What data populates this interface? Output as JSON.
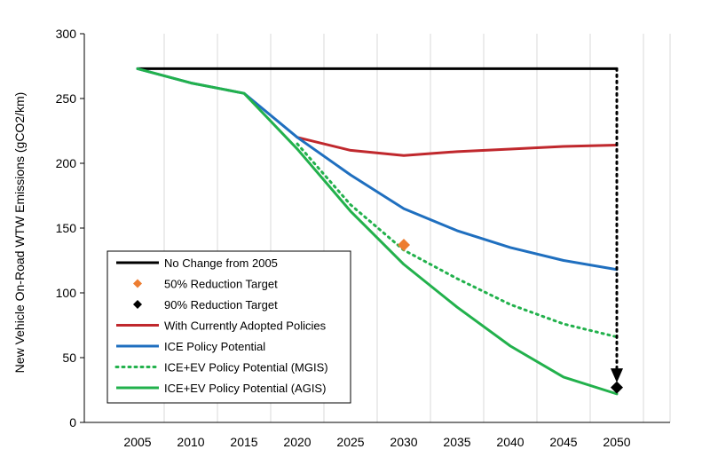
{
  "chart_data": {
    "type": "line",
    "title": "",
    "xlabel": "",
    "ylabel": "New Vehicle On-Road WTW Emissions (gCO2/km)",
    "xlim": [
      2000,
      2055
    ],
    "ylim": [
      0,
      300
    ],
    "x_ticks": [
      2005,
      2010,
      2015,
      2020,
      2025,
      2030,
      2035,
      2040,
      2045,
      2050
    ],
    "y_ticks": [
      0,
      50,
      100,
      150,
      200,
      250,
      300
    ],
    "grid": "vertical",
    "legend_position": "lower-left",
    "series": [
      {
        "name": "No Change from 2005",
        "kind": "line",
        "style": "solid",
        "color": "#000000",
        "x": [
          2005,
          2050
        ],
        "y": [
          273,
          273
        ]
      },
      {
        "name": "50% Reduction Target",
        "kind": "marker",
        "marker": "diamond",
        "color": "#ED7D31",
        "x": [
          2030
        ],
        "y": [
          137
        ]
      },
      {
        "name": "90% Reduction Target",
        "kind": "marker",
        "marker": "diamond",
        "color": "#000000",
        "x": [
          2050
        ],
        "y": [
          27
        ]
      },
      {
        "name": "With Currently Adopted Policies",
        "kind": "line",
        "style": "solid",
        "color": "#C0282D",
        "x": [
          2020,
          2025,
          2030,
          2035,
          2040,
          2045,
          2050
        ],
        "y": [
          220,
          210,
          206,
          209,
          211,
          213,
          214
        ]
      },
      {
        "name": "ICE Policy Potential",
        "kind": "line",
        "style": "solid",
        "color": "#1F6FBF",
        "x": [
          2005,
          2010,
          2015,
          2020,
          2025,
          2030,
          2035,
          2040,
          2045,
          2050
        ],
        "y": [
          273,
          262,
          254,
          220,
          191,
          165,
          148,
          135,
          125,
          118
        ]
      },
      {
        "name": "ICE+EV Policy Potential (MGIS)",
        "kind": "line",
        "style": "dotted",
        "color": "#22B14C",
        "x": [
          2020,
          2025,
          2030,
          2035,
          2040,
          2045,
          2050
        ],
        "y": [
          215,
          168,
          133,
          111,
          91,
          76,
          66
        ]
      },
      {
        "name": "ICE+EV Policy Potential (AGIS)",
        "kind": "line",
        "style": "solid",
        "color": "#22B14C",
        "x": [
          2005,
          2010,
          2015,
          2020,
          2025,
          2030,
          2035,
          2040,
          2045,
          2050
        ],
        "y": [
          273,
          262,
          254,
          211,
          163,
          122,
          89,
          59,
          35,
          22
        ]
      }
    ],
    "annotations": [
      {
        "type": "dotted-arrow",
        "color": "#000000",
        "x": 2050,
        "from_y": 273,
        "to_y": 28
      }
    ]
  }
}
